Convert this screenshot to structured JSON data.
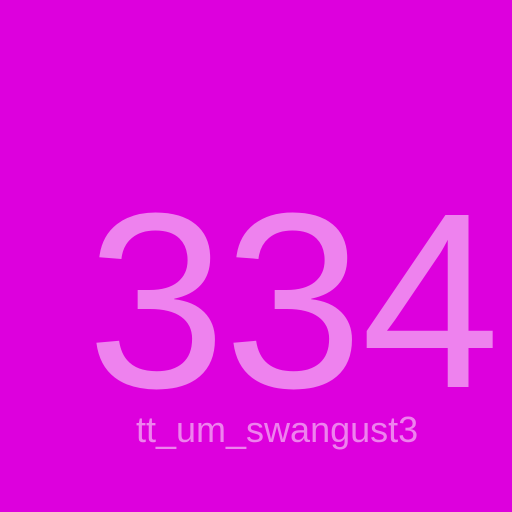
{
  "tile": {
    "number": "334",
    "caption": "tt_um_swangust3",
    "background_color": "#dd00dd",
    "text_color": "#ee82ee"
  }
}
